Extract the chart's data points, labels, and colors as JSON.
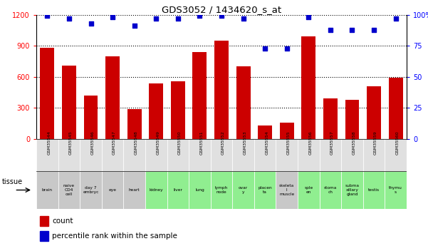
{
  "title": "GDS3052 / 1434620_s_at",
  "gsm_labels": [
    "GSM35544",
    "GSM35545",
    "GSM35546",
    "GSM35547",
    "GSM35548",
    "GSM35549",
    "GSM35550",
    "GSM35551",
    "GSM35552",
    "GSM35553",
    "GSM35554",
    "GSM35555",
    "GSM35556",
    "GSM35557",
    "GSM35558",
    "GSM35559",
    "GSM35560"
  ],
  "tissue_labels": [
    "brain",
    "naive\nCD4\ncell",
    "day 7\nembryc",
    "eye",
    "heart",
    "kidney",
    "liver",
    "lung",
    "lymph\nnode",
    "ovar\ny",
    "placen\nta",
    "skeleta\nl\nmuscle",
    "sple\nen",
    "stoma\nch",
    "subma\nxillary\ngland",
    "testis",
    "thymu\ns"
  ],
  "tissue_colors": [
    "#c8c8c8",
    "#c8c8c8",
    "#c8c8c8",
    "#c8c8c8",
    "#c8c8c8",
    "#90ee90",
    "#90ee90",
    "#90ee90",
    "#90ee90",
    "#90ee90",
    "#90ee90",
    "#c8c8c8",
    "#90ee90",
    "#90ee90",
    "#90ee90",
    "#90ee90",
    "#90ee90"
  ],
  "counts": [
    880,
    710,
    420,
    800,
    290,
    535,
    555,
    840,
    950,
    700,
    130,
    155,
    990,
    390,
    380,
    510,
    595
  ],
  "percentile_ranks": [
    99,
    97,
    93,
    98,
    91,
    97,
    97,
    99,
    99,
    97,
    73,
    73,
    98,
    88,
    88,
    88,
    97
  ],
  "bar_color": "#cc0000",
  "dot_color": "#0000cc",
  "ylim_left": [
    0,
    1200
  ],
  "ylim_right": [
    0,
    100
  ],
  "yticks_left": [
    0,
    300,
    600,
    900,
    1200
  ],
  "yticks_right": [
    0,
    25,
    50,
    75,
    100
  ],
  "ylabel_right_ticks": [
    "0",
    "25",
    "50",
    "75",
    "100%"
  ]
}
